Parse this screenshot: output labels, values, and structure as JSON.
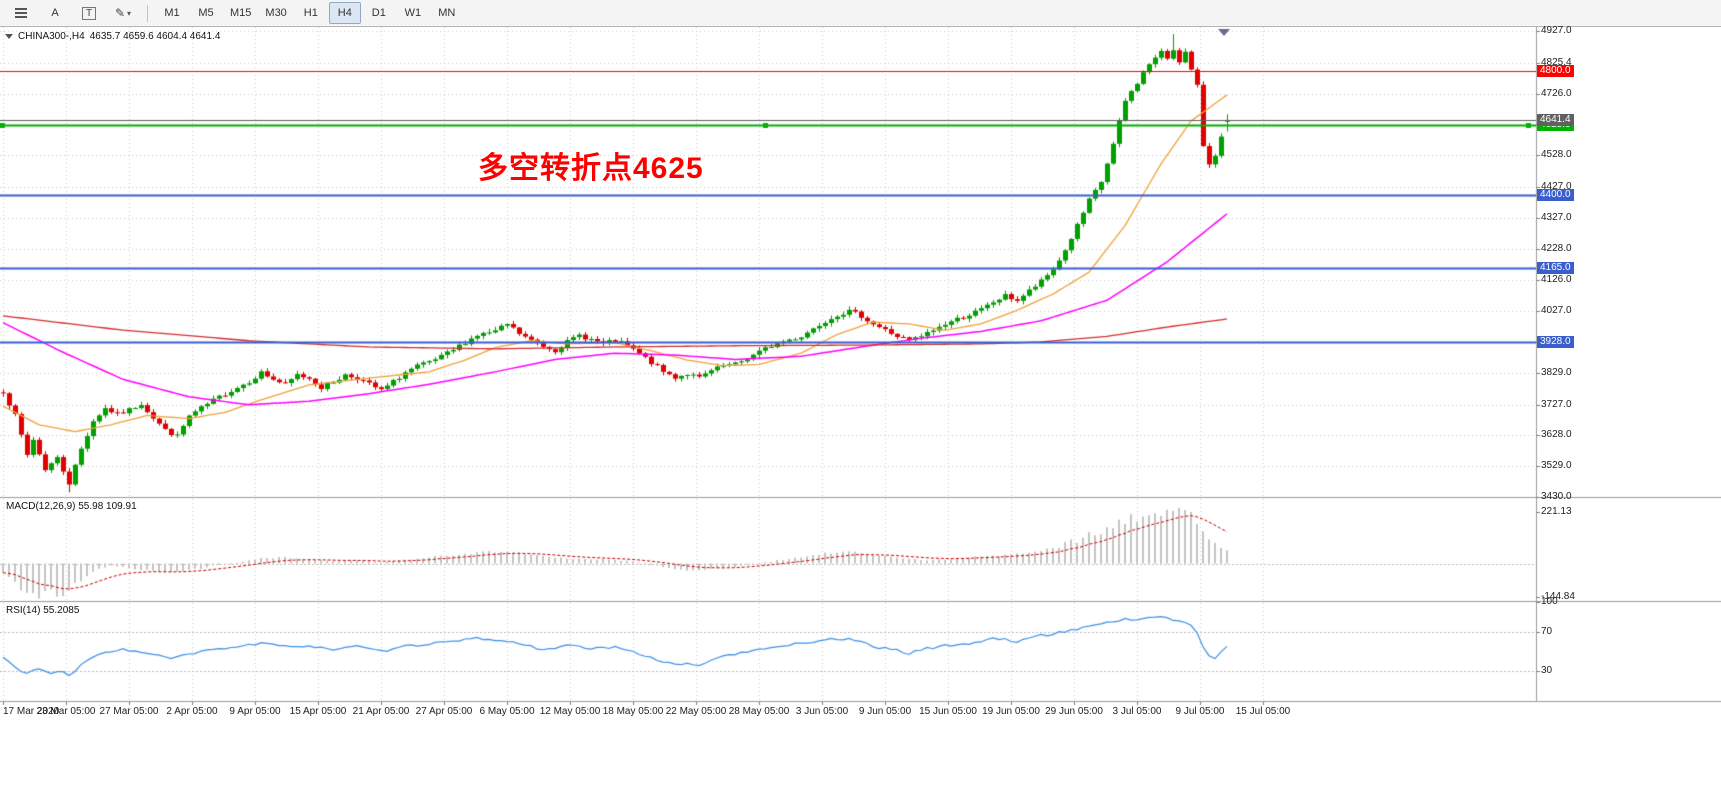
{
  "toolbar": {
    "buttons": {
      "a_label": "A",
      "t_label": "T"
    },
    "timeframes": [
      "M1",
      "M5",
      "M15",
      "M30",
      "H1",
      "H4",
      "D1",
      "W1",
      "MN"
    ],
    "active_timeframe": "H4"
  },
  "chart": {
    "symbol_title": "CHINA300-,H4",
    "ohlc_text": "4635.7 4659.6 4604.4 4641.4",
    "annotation": {
      "text": "多空转折点4625",
      "color": "#FF0000"
    }
  },
  "macd": {
    "label": "MACD(12,26,9) 55.98 109.91"
  },
  "rsi": {
    "label": "RSI(14) 55.2085"
  },
  "chart_data": {
    "type": "candlestick",
    "symbol": "CHINA300-",
    "timeframe": "H4",
    "bars": 205,
    "current_ohlc": {
      "open": 4635.7,
      "high": 4659.6,
      "low": 4604.4,
      "close": 4641.4
    },
    "candle_up_color": "#00A000",
    "candle_down_color": "#E00000",
    "y_axis": {
      "min": 3430,
      "max": 4940,
      "ticks": [
        {
          "v": 4927.0,
          "t": "4927.0"
        },
        {
          "v": 4825.4,
          "t": "4825.4"
        },
        {
          "v": 4726.0,
          "t": "4726.0"
        },
        {
          "v": 4627.6,
          "t": "4627.6"
        },
        {
          "v": 4528.0,
          "t": "4528.0"
        },
        {
          "v": 4427.0,
          "t": "4427.0"
        },
        {
          "v": 4327.0,
          "t": "4327.0"
        },
        {
          "v": 4228.0,
          "t": "4228.0"
        },
        {
          "v": 4126.0,
          "t": "4126.0"
        },
        {
          "v": 4027.0,
          "t": "4027.0"
        },
        {
          "v": 3928.0,
          "t": "3928.0"
        },
        {
          "v": 3829.0,
          "t": "3829.0"
        },
        {
          "v": 3727.0,
          "t": "3727.0"
        },
        {
          "v": 3628.0,
          "t": "3628.0"
        },
        {
          "v": 3529.0,
          "t": "3529.0"
        },
        {
          "v": 3430.0,
          "t": "3430.0"
        }
      ]
    },
    "x_labels": [
      "17 Mar 2020",
      "23 Mar 05:00",
      "27 Mar 05:00",
      "2 Apr 05:00",
      "9 Apr 05:00",
      "15 Apr 05:00",
      "21 Apr 05:00",
      "27 Apr 05:00",
      "6 May 05:00",
      "12 May 05:00",
      "18 May 05:00",
      "22 May 05:00",
      "28 May 05:00",
      "3 Jun 05:00",
      "9 Jun 05:00",
      "15 Jun 05:00",
      "19 Jun 05:00",
      "29 Jun 05:00",
      "3 Jul 05:00",
      "9 Jul 05:00",
      "15 Jul 05:00"
    ],
    "levels": [
      {
        "price": 4800.0,
        "label": "4800.0",
        "color": "#FF0000",
        "width": 1,
        "selected": false
      },
      {
        "price": 4625.0,
        "label": "4625.0",
        "color": "#00B300",
        "width": 2,
        "selected": true
      },
      {
        "price": 4400.0,
        "label": "4400.0",
        "color": "#3A5FCD",
        "width": 2,
        "selected": false
      },
      {
        "price": 4165.0,
        "label": "4165.0",
        "color": "#3A5FCD",
        "width": 2,
        "selected": false
      },
      {
        "price": 3928.0,
        "label": "3928.0",
        "color": "#3A5FCD",
        "width": 2,
        "selected": false
      }
    ],
    "current_price": {
      "price": 4641.4,
      "label": "4641.4",
      "color": "#606060"
    },
    "extremes": {
      "high": {
        "bar": 195,
        "price": 4917.0
      },
      "low": {
        "bar": 11,
        "price": 3445.0
      }
    },
    "close_anchors": [
      [
        0,
        3770
      ],
      [
        2,
        3690
      ],
      [
        4,
        3565
      ],
      [
        5,
        3615
      ],
      [
        7,
        3520
      ],
      [
        9,
        3555
      ],
      [
        11,
        3475
      ],
      [
        13,
        3585
      ],
      [
        15,
        3675
      ],
      [
        17,
        3715
      ],
      [
        19,
        3695
      ],
      [
        21,
        3710
      ],
      [
        23,
        3730
      ],
      [
        25,
        3685
      ],
      [
        27,
        3645
      ],
      [
        29,
        3625
      ],
      [
        31,
        3690
      ],
      [
        33,
        3715
      ],
      [
        35,
        3740
      ],
      [
        37,
        3762
      ],
      [
        39,
        3782
      ],
      [
        41,
        3802
      ],
      [
        43,
        3830
      ],
      [
        45,
        3808
      ],
      [
        47,
        3790
      ],
      [
        49,
        3822
      ],
      [
        51,
        3812
      ],
      [
        53,
        3782
      ],
      [
        55,
        3800
      ],
      [
        57,
        3822
      ],
      [
        59,
        3812
      ],
      [
        61,
        3792
      ],
      [
        63,
        3772
      ],
      [
        65,
        3800
      ],
      [
        67,
        3830
      ],
      [
        69,
        3850
      ],
      [
        71,
        3862
      ],
      [
        73,
        3880
      ],
      [
        75,
        3902
      ],
      [
        77,
        3928
      ],
      [
        79,
        3950
      ],
      [
        82,
        3962
      ],
      [
        84,
        3985
      ],
      [
        86,
        3955
      ],
      [
        88,
        3932
      ],
      [
        90,
        3915
      ],
      [
        92,
        3902
      ],
      [
        94,
        3928
      ],
      [
        96,
        3950
      ],
      [
        98,
        3936
      ],
      [
        100,
        3922
      ],
      [
        102,
        3932
      ],
      [
        104,
        3915
      ],
      [
        106,
        3890
      ],
      [
        108,
        3862
      ],
      [
        110,
        3832
      ],
      [
        112,
        3815
      ],
      [
        114,
        3826
      ],
      [
        116,
        3812
      ],
      [
        118,
        3835
      ],
      [
        120,
        3850
      ],
      [
        122,
        3856
      ],
      [
        124,
        3876
      ],
      [
        126,
        3896
      ],
      [
        128,
        3916
      ],
      [
        130,
        3930
      ],
      [
        133,
        3946
      ],
      [
        135,
        3972
      ],
      [
        137,
        3996
      ],
      [
        139,
        4016
      ],
      [
        141,
        4026
      ],
      [
        143,
        4012
      ],
      [
        145,
        3986
      ],
      [
        147,
        3966
      ],
      [
        149,
        3946
      ],
      [
        151,
        3932
      ],
      [
        153,
        3946
      ],
      [
        155,
        3966
      ],
      [
        157,
        3986
      ],
      [
        159,
        4002
      ],
      [
        161,
        4016
      ],
      [
        163,
        4032
      ],
      [
        165,
        4056
      ],
      [
        167,
        4076
      ],
      [
        169,
        4062
      ],
      [
        171,
        4092
      ],
      [
        173,
        4122
      ],
      [
        175,
        4162
      ],
      [
        177,
        4222
      ],
      [
        179,
        4302
      ],
      [
        181,
        4382
      ],
      [
        183,
        4442
      ],
      [
        185,
        4562
      ],
      [
        187,
        4702
      ],
      [
        189,
        4762
      ],
      [
        191,
        4822
      ],
      [
        193,
        4858
      ],
      [
        194,
        4840
      ],
      [
        195,
        4868
      ],
      [
        196,
        4832
      ],
      [
        197,
        4858
      ],
      [
        198,
        4800
      ],
      [
        199,
        4748
      ],
      [
        200,
        4560
      ],
      [
        201,
        4502
      ],
      [
        202,
        4532
      ],
      [
        203,
        4585
      ],
      [
        204,
        4641.4
      ]
    ],
    "ma_lines": [
      {
        "name": "ma-orange",
        "color": "#F0A33C",
        "width": 1.3,
        "anchors": [
          [
            0,
            3722
          ],
          [
            6,
            3662
          ],
          [
            12,
            3640
          ],
          [
            18,
            3662
          ],
          [
            24,
            3692
          ],
          [
            31,
            3682
          ],
          [
            37,
            3702
          ],
          [
            43,
            3742
          ],
          [
            51,
            3790
          ],
          [
            61,
            3812
          ],
          [
            71,
            3832
          ],
          [
            77,
            3870
          ],
          [
            82,
            3910
          ],
          [
            88,
            3932
          ],
          [
            94,
            3922
          ],
          [
            102,
            3926
          ],
          [
            108,
            3900
          ],
          [
            114,
            3870
          ],
          [
            120,
            3852
          ],
          [
            126,
            3856
          ],
          [
            133,
            3892
          ],
          [
            139,
            3952
          ],
          [
            145,
            3992
          ],
          [
            151,
            3986
          ],
          [
            157,
            3966
          ],
          [
            163,
            3986
          ],
          [
            169,
            4030
          ],
          [
            175,
            4082
          ],
          [
            181,
            4152
          ],
          [
            187,
            4302
          ],
          [
            193,
            4500
          ],
          [
            198,
            4638
          ],
          [
            204,
            4722
          ]
        ]
      },
      {
        "name": "ma-magenta",
        "color": "#FF00FF",
        "width": 1.5,
        "anchors": [
          [
            0,
            3990
          ],
          [
            10,
            3895
          ],
          [
            20,
            3808
          ],
          [
            31,
            3752
          ],
          [
            41,
            3726
          ],
          [
            51,
            3738
          ],
          [
            61,
            3762
          ],
          [
            71,
            3792
          ],
          [
            82,
            3832
          ],
          [
            92,
            3872
          ],
          [
            102,
            3892
          ],
          [
            112,
            3886
          ],
          [
            122,
            3872
          ],
          [
            133,
            3882
          ],
          [
            143,
            3912
          ],
          [
            153,
            3940
          ],
          [
            163,
            3962
          ],
          [
            173,
            3996
          ],
          [
            184,
            4062
          ],
          [
            194,
            4185
          ],
          [
            204,
            4340
          ]
        ]
      },
      {
        "name": "ma-red",
        "color": "#D23030",
        "width": 1.3,
        "anchors": [
          [
            0,
            4012
          ],
          [
            20,
            3966
          ],
          [
            41,
            3932
          ],
          [
            61,
            3912
          ],
          [
            82,
            3906
          ],
          [
            102,
            3912
          ],
          [
            122,
            3916
          ],
          [
            143,
            3918
          ],
          [
            163,
            3922
          ],
          [
            173,
            3928
          ],
          [
            184,
            3946
          ],
          [
            194,
            3976
          ],
          [
            204,
            4002
          ]
        ]
      }
    ],
    "macd": {
      "min": -160,
      "max": 280,
      "hist_color": "#C4C4C4",
      "signal_color": "#CC0000",
      "ticks": [
        {
          "v": 221.13,
          "t": "221.13"
        },
        {
          "v": -144.84,
          "t": "-144.84"
        }
      ],
      "hist_anchors": [
        [
          0,
          -40
        ],
        [
          2,
          -80
        ],
        [
          4,
          -128
        ],
        [
          6,
          -144
        ],
        [
          8,
          -120
        ],
        [
          10,
          -138
        ],
        [
          12,
          -92
        ],
        [
          14,
          -52
        ],
        [
          16,
          -22
        ],
        [
          18,
          -10
        ],
        [
          20,
          -16
        ],
        [
          24,
          -30
        ],
        [
          28,
          -40
        ],
        [
          31,
          -30
        ],
        [
          35,
          -10
        ],
        [
          39,
          5
        ],
        [
          43,
          22
        ],
        [
          47,
          26
        ],
        [
          51,
          18
        ],
        [
          55,
          10
        ],
        [
          59,
          12
        ],
        [
          63,
          6
        ],
        [
          67,
          16
        ],
        [
          71,
          26
        ],
        [
          75,
          36
        ],
        [
          79,
          46
        ],
        [
          82,
          50
        ],
        [
          86,
          44
        ],
        [
          90,
          30
        ],
        [
          94,
          20
        ],
        [
          98,
          18
        ],
        [
          102,
          15
        ],
        [
          106,
          5
        ],
        [
          110,
          -15
        ],
        [
          114,
          -30
        ],
        [
          118,
          -24
        ],
        [
          122,
          -14
        ],
        [
          126,
          2
        ],
        [
          130,
          16
        ],
        [
          133,
          26
        ],
        [
          137,
          40
        ],
        [
          141,
          50
        ],
        [
          145,
          40
        ],
        [
          149,
          25
        ],
        [
          153,
          16
        ],
        [
          157,
          18
        ],
        [
          161,
          26
        ],
        [
          165,
          36
        ],
        [
          169,
          40
        ],
        [
          173,
          56
        ],
        [
          177,
          82
        ],
        [
          181,
          122
        ],
        [
          185,
          162
        ],
        [
          189,
          196
        ],
        [
          193,
          218
        ],
        [
          195,
          221.13
        ],
        [
          197,
          210
        ],
        [
          199,
          188
        ],
        [
          200,
          150
        ],
        [
          201,
          118
        ],
        [
          202,
          86
        ],
        [
          203,
          66
        ],
        [
          204,
          55.98
        ]
      ]
    },
    "rsi": {
      "min": 0,
      "max": 100,
      "color": "#3E90E8",
      "levels": [
        70,
        30
      ],
      "ticks": [
        {
          "v": 100,
          "t": "100"
        },
        {
          "v": 70,
          "t": "70"
        },
        {
          "v": 30,
          "t": "30"
        }
      ],
      "anchors": [
        [
          0,
          44
        ],
        [
          2,
          34
        ],
        [
          4,
          28
        ],
        [
          6,
          33
        ],
        [
          8,
          27
        ],
        [
          10,
          30
        ],
        [
          11,
          25
        ],
        [
          13,
          36
        ],
        [
          15,
          44
        ],
        [
          17,
          50
        ],
        [
          20,
          52
        ],
        [
          24,
          48
        ],
        [
          28,
          43
        ],
        [
          31,
          47
        ],
        [
          35,
          52
        ],
        [
          39,
          55
        ],
        [
          43,
          58
        ],
        [
          47,
          55
        ],
        [
          51,
          56
        ],
        [
          55,
          52
        ],
        [
          59,
          55
        ],
        [
          63,
          50
        ],
        [
          67,
          55
        ],
        [
          71,
          58
        ],
        [
          75,
          60
        ],
        [
          79,
          63
        ],
        [
          82,
          62
        ],
        [
          86,
          58
        ],
        [
          90,
          52
        ],
        [
          94,
          56
        ],
        [
          98,
          53
        ],
        [
          102,
          54
        ],
        [
          106,
          48
        ],
        [
          110,
          40
        ],
        [
          112,
          36
        ],
        [
          114,
          39
        ],
        [
          116,
          35
        ],
        [
          118,
          42
        ],
        [
          120,
          45
        ],
        [
          122,
          47
        ],
        [
          126,
          52
        ],
        [
          130,
          56
        ],
        [
          133,
          58
        ],
        [
          137,
          62
        ],
        [
          141,
          63
        ],
        [
          143,
          60
        ],
        [
          145,
          55
        ],
        [
          149,
          51
        ],
        [
          151,
          48
        ],
        [
          153,
          52
        ],
        [
          157,
          56
        ],
        [
          161,
          58
        ],
        [
          163,
          60
        ],
        [
          165,
          63
        ],
        [
          167,
          62
        ],
        [
          169,
          60
        ],
        [
          171,
          64
        ],
        [
          173,
          66
        ],
        [
          177,
          70
        ],
        [
          181,
          76
        ],
        [
          185,
          80
        ],
        [
          187,
          83
        ],
        [
          189,
          82
        ],
        [
          191,
          84
        ],
        [
          193,
          85
        ],
        [
          195,
          82
        ],
        [
          197,
          80
        ],
        [
          198,
          76
        ],
        [
          199,
          68
        ],
        [
          200,
          55
        ],
        [
          201,
          45
        ],
        [
          202,
          43
        ],
        [
          203,
          50
        ],
        [
          204,
          55.2
        ]
      ]
    }
  }
}
